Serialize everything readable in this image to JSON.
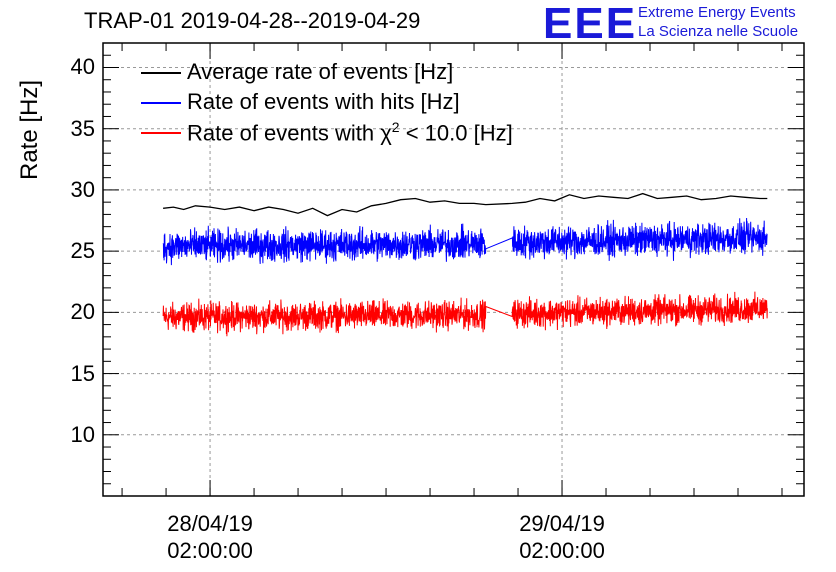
{
  "header": {
    "title": "TRAP-01 2019-04-28--2019-04-29",
    "logo_text": "EEE",
    "logo_line1": "Extreme Energy Events",
    "logo_line2": "La Scienza nelle Scuole"
  },
  "chart_data": {
    "type": "line",
    "title": "TRAP-01 2019-04-28--2019-04-29",
    "ylabel": "Rate [Hz]",
    "xlabel": "",
    "ylim": [
      5,
      42
    ],
    "grid": true,
    "legend_position": "top-left",
    "y_ticks": [
      "10",
      "15",
      "20",
      "25",
      "30",
      "35",
      "40"
    ],
    "x_ticks": [
      {
        "date": "28/04/19",
        "time": "02:00:00",
        "hours": 2
      },
      {
        "date": "29/04/19",
        "time": "02:00:00",
        "hours": 26
      }
    ],
    "x_range_hours": [
      -5.3,
      42.5
    ],
    "data_gap_hours": [
      20.8,
      22.6
    ],
    "series": [
      {
        "name": "Average rate of events [Hz]",
        "color": "#000000",
        "x_hours": [
          -1.2,
          -0.5,
          0.2,
          1,
          2,
          3,
          4,
          5,
          6,
          7,
          8,
          9,
          10,
          11,
          12,
          13,
          14,
          15,
          16,
          17,
          18,
          19,
          20,
          20.8,
          22.6,
          23.5,
          24.5,
          25.5,
          26.5,
          27.5,
          28.5,
          29.5,
          30.5,
          31.5,
          32.5,
          33.5,
          34.5,
          35.5,
          36.5,
          37.5,
          38.5,
          39.5,
          40,
          39.8
        ],
        "values": [
          28.5,
          28.6,
          28.4,
          28.7,
          28.6,
          28.4,
          28.6,
          28.3,
          28.6,
          28.4,
          28.1,
          28.5,
          27.9,
          28.4,
          28.2,
          28.7,
          28.9,
          29.2,
          29.3,
          29.0,
          29.1,
          28.9,
          28.9,
          28.8,
          28.9,
          29.0,
          29.3,
          29.1,
          29.6,
          29.3,
          29.5,
          29.4,
          29.3,
          29.7,
          29.3,
          29.4,
          29.5,
          29.2,
          29.3,
          29.5,
          29.4,
          29.3,
          29.3,
          29.3
        ]
      },
      {
        "name": "Rate of events with hits [Hz]",
        "color": "#0000ff",
        "segments": [
          {
            "x_start_hours": -1.2,
            "x_end_hours": 20.8,
            "mean_start": 25.4,
            "mean_end": 25.6,
            "spread": 0.9
          },
          {
            "x_start_hours": 22.6,
            "x_end_hours": 40.0,
            "mean_start": 25.7,
            "mean_end": 26.1,
            "spread": 0.9
          }
        ]
      },
      {
        "name": "Rate of events with χ² < 10.0 [Hz]",
        "color": "#ff0000",
        "segments": [
          {
            "x_start_hours": -1.2,
            "x_end_hours": 20.8,
            "mean_start": 19.6,
            "mean_end": 19.8,
            "spread": 0.8
          },
          {
            "x_start_hours": 22.6,
            "x_end_hours": 40.0,
            "mean_start": 19.9,
            "mean_end": 20.3,
            "spread": 0.8
          }
        ]
      }
    ],
    "legend": [
      {
        "text": "Average rate of events [Hz]",
        "color": "#000000"
      },
      {
        "text": "Rate of events with hits [Hz]",
        "color": "#0000ff"
      },
      {
        "text_prefix": "Rate of events with ",
        "chi": "χ",
        "sup": "2",
        "text_suffix": " < 10.0 [Hz]",
        "color": "#ff0000"
      }
    ]
  }
}
